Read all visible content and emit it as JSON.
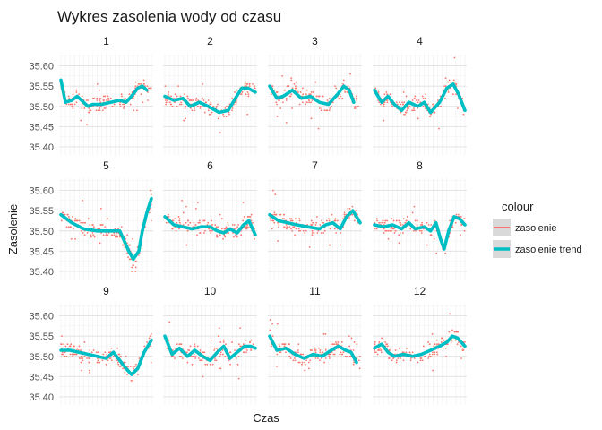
{
  "chart_data": {
    "type": "scatter",
    "title": "Wykres zasolenia wody od czasu",
    "xlabel": "Czas",
    "ylabel": "Zasolenie",
    "ylim": [
      35.38,
      35.63
    ],
    "yticks": [
      "35.40",
      "35.45",
      "35.50",
      "35.55",
      "35.60"
    ],
    "xlim": [
      0,
      1
    ],
    "grid": true,
    "facet_labels": [
      "1",
      "2",
      "3",
      "4",
      "5",
      "6",
      "7",
      "8",
      "9",
      "10",
      "11",
      "12"
    ],
    "legend": {
      "title": "colour",
      "position": "right",
      "entries": [
        {
          "label": "zasolenie",
          "color": "#F8766D"
        },
        {
          "label": "zasolenie trend",
          "color": "#00BFC4"
        }
      ]
    },
    "colors": {
      "points": "#F8766D",
      "trend": "#00BFC4"
    },
    "facets": [
      {
        "trend": [
          [
            0.0,
            35.565
          ],
          [
            0.05,
            35.51
          ],
          [
            0.12,
            35.515
          ],
          [
            0.18,
            35.525
          ],
          [
            0.25,
            35.51
          ],
          [
            0.3,
            35.5
          ],
          [
            0.35,
            35.505
          ],
          [
            0.45,
            35.505
          ],
          [
            0.55,
            35.51
          ],
          [
            0.65,
            35.515
          ],
          [
            0.72,
            35.51
          ],
          [
            0.78,
            35.525
          ],
          [
            0.85,
            35.545
          ],
          [
            0.9,
            35.55
          ],
          [
            0.95,
            35.54
          ]
        ]
      },
      {
        "trend": [
          [
            0.0,
            35.525
          ],
          [
            0.1,
            35.515
          ],
          [
            0.2,
            35.52
          ],
          [
            0.28,
            35.5
          ],
          [
            0.38,
            35.51
          ],
          [
            0.48,
            35.5
          ],
          [
            0.6,
            35.485
          ],
          [
            0.7,
            35.49
          ],
          [
            0.78,
            35.52
          ],
          [
            0.85,
            35.545
          ],
          [
            0.92,
            35.545
          ],
          [
            1.0,
            35.535
          ]
        ]
      },
      {
        "trend": [
          [
            0.0,
            35.55
          ],
          [
            0.08,
            35.52
          ],
          [
            0.15,
            35.525
          ],
          [
            0.25,
            35.54
          ],
          [
            0.35,
            35.52
          ],
          [
            0.45,
            35.525
          ],
          [
            0.55,
            35.51
          ],
          [
            0.65,
            35.505
          ],
          [
            0.75,
            35.53
          ],
          [
            0.82,
            35.55
          ],
          [
            0.88,
            35.54
          ],
          [
            0.93,
            35.51
          ]
        ]
      },
      {
        "trend": [
          [
            0.0,
            35.54
          ],
          [
            0.08,
            35.51
          ],
          [
            0.15,
            35.525
          ],
          [
            0.22,
            35.505
          ],
          [
            0.3,
            35.49
          ],
          [
            0.38,
            35.51
          ],
          [
            0.48,
            35.5
          ],
          [
            0.55,
            35.51
          ],
          [
            0.62,
            35.485
          ],
          [
            0.72,
            35.51
          ],
          [
            0.8,
            35.545
          ],
          [
            0.87,
            35.555
          ],
          [
            0.93,
            35.53
          ],
          [
            1.0,
            35.49
          ]
        ]
      },
      {
        "trend": [
          [
            0.0,
            35.54
          ],
          [
            0.12,
            35.52
          ],
          [
            0.25,
            35.505
          ],
          [
            0.4,
            35.5
          ],
          [
            0.55,
            35.5
          ],
          [
            0.65,
            35.5
          ],
          [
            0.75,
            35.45
          ],
          [
            0.8,
            35.43
          ],
          [
            0.86,
            35.45
          ],
          [
            0.9,
            35.5
          ],
          [
            0.95,
            35.545
          ],
          [
            1.0,
            35.58
          ]
        ]
      },
      {
        "trend": [
          [
            0.0,
            35.535
          ],
          [
            0.1,
            35.515
          ],
          [
            0.2,
            35.51
          ],
          [
            0.3,
            35.505
          ],
          [
            0.4,
            35.51
          ],
          [
            0.5,
            35.51
          ],
          [
            0.58,
            35.5
          ],
          [
            0.65,
            35.495
          ],
          [
            0.72,
            35.505
          ],
          [
            0.8,
            35.495
          ],
          [
            0.87,
            35.515
          ],
          [
            0.93,
            35.525
          ],
          [
            1.0,
            35.49
          ]
        ]
      },
      {
        "trend": [
          [
            0.0,
            35.54
          ],
          [
            0.1,
            35.525
          ],
          [
            0.2,
            35.52
          ],
          [
            0.3,
            35.515
          ],
          [
            0.42,
            35.51
          ],
          [
            0.55,
            35.505
          ],
          [
            0.62,
            35.515
          ],
          [
            0.7,
            35.52
          ],
          [
            0.78,
            35.505
          ],
          [
            0.85,
            35.535
          ],
          [
            0.92,
            35.55
          ],
          [
            1.0,
            35.52
          ]
        ]
      },
      {
        "trend": [
          [
            0.0,
            35.515
          ],
          [
            0.1,
            35.51
          ],
          [
            0.2,
            35.515
          ],
          [
            0.3,
            35.505
          ],
          [
            0.38,
            35.52
          ],
          [
            0.45,
            35.505
          ],
          [
            0.55,
            35.51
          ],
          [
            0.62,
            35.5
          ],
          [
            0.68,
            35.52
          ],
          [
            0.73,
            35.48
          ],
          [
            0.77,
            35.455
          ],
          [
            0.82,
            35.5
          ],
          [
            0.88,
            35.535
          ],
          [
            0.94,
            35.53
          ],
          [
            1.0,
            35.515
          ]
        ]
      },
      {
        "trend": [
          [
            0.0,
            35.515
          ],
          [
            0.1,
            35.515
          ],
          [
            0.2,
            35.51
          ],
          [
            0.3,
            35.505
          ],
          [
            0.4,
            35.5
          ],
          [
            0.5,
            35.495
          ],
          [
            0.58,
            35.51
          ],
          [
            0.65,
            35.49
          ],
          [
            0.72,
            35.47
          ],
          [
            0.78,
            35.455
          ],
          [
            0.85,
            35.47
          ],
          [
            0.92,
            35.51
          ],
          [
            1.0,
            35.54
          ]
        ]
      },
      {
        "trend": [
          [
            0.0,
            35.55
          ],
          [
            0.08,
            35.505
          ],
          [
            0.16,
            35.52
          ],
          [
            0.25,
            35.5
          ],
          [
            0.33,
            35.515
          ],
          [
            0.42,
            35.5
          ],
          [
            0.5,
            35.49
          ],
          [
            0.58,
            35.51
          ],
          [
            0.65,
            35.525
          ],
          [
            0.72,
            35.495
          ],
          [
            0.8,
            35.51
          ],
          [
            0.88,
            35.525
          ],
          [
            0.95,
            35.525
          ],
          [
            1.0,
            35.52
          ]
        ]
      },
      {
        "trend": [
          [
            0.0,
            35.55
          ],
          [
            0.08,
            35.515
          ],
          [
            0.18,
            35.52
          ],
          [
            0.28,
            35.505
          ],
          [
            0.38,
            35.495
          ],
          [
            0.48,
            35.505
          ],
          [
            0.58,
            35.5
          ],
          [
            0.68,
            35.515
          ],
          [
            0.76,
            35.525
          ],
          [
            0.84,
            35.515
          ],
          [
            0.9,
            35.51
          ],
          [
            0.96,
            35.485
          ]
        ]
      },
      {
        "trend": [
          [
            0.0,
            35.52
          ],
          [
            0.08,
            35.53
          ],
          [
            0.15,
            35.51
          ],
          [
            0.22,
            35.5
          ],
          [
            0.32,
            35.505
          ],
          [
            0.42,
            35.5
          ],
          [
            0.52,
            35.505
          ],
          [
            0.62,
            35.515
          ],
          [
            0.72,
            35.525
          ],
          [
            0.8,
            35.535
          ],
          [
            0.86,
            35.55
          ],
          [
            0.92,
            35.545
          ],
          [
            1.0,
            35.525
          ]
        ]
      }
    ]
  }
}
